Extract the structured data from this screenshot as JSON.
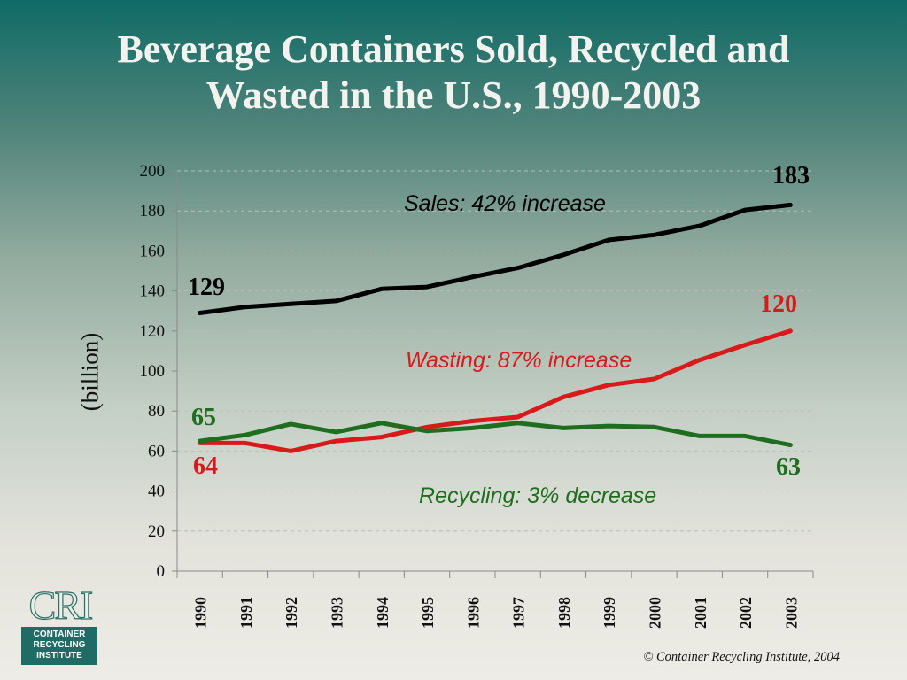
{
  "title": {
    "line1": "Beverage Containers Sold, Recycled and",
    "line2": "Wasted in the U.S., 1990-2003"
  },
  "ylabel": "(billion)",
  "annotations": {
    "sales": "Sales: 42% increase",
    "wasting": "Wasting: 87% increase",
    "recycling": "Recycling: 3% decrease"
  },
  "end_labels": {
    "sales_start": "129",
    "sales_end": "183",
    "wasting_start": "64",
    "wasting_end": "120",
    "recycling_start": "65",
    "recycling_end": "63"
  },
  "logo": {
    "mark": "CRI",
    "line1": "CONTAINER",
    "line2": "RECYCLING",
    "line3": "INSTITUTE"
  },
  "copyright": "©  Container Recycling Institute, 2004",
  "colors": {
    "sales": "#000000",
    "wasting": "#d81a1a",
    "recycling": "#1f6e1f",
    "title": "#f2f2ee"
  },
  "chart_data": {
    "type": "line",
    "title": "Beverage Containers Sold, Recycled and Wasted in the U.S., 1990-2003",
    "xlabel": "",
    "ylabel": "(billion)",
    "x": [
      "1990",
      "1991",
      "1992",
      "1993",
      "1994",
      "1995",
      "1996",
      "1997",
      "1998",
      "1999",
      "2000",
      "2001",
      "2002",
      "2003"
    ],
    "ylim": [
      0,
      200
    ],
    "yticks": [
      0,
      20,
      40,
      60,
      80,
      100,
      120,
      140,
      160,
      180,
      200
    ],
    "grid": "horizontal dashed",
    "series": [
      {
        "key": "sales",
        "values": [
          129,
          132,
          133.5,
          135,
          141,
          142,
          147,
          151.5,
          158,
          165.5,
          168,
          172.5,
          180.5,
          183
        ]
      },
      {
        "key": "wasting",
        "values": [
          64,
          64,
          60,
          65,
          67,
          72,
          75,
          77,
          87,
          93,
          96,
          105.5,
          113,
          120
        ]
      },
      {
        "key": "recycling",
        "values": [
          65,
          68,
          73.5,
          69.5,
          74,
          70,
          71.5,
          74,
          71.5,
          72.5,
          72,
          67.5,
          67.5,
          63
        ]
      }
    ]
  }
}
